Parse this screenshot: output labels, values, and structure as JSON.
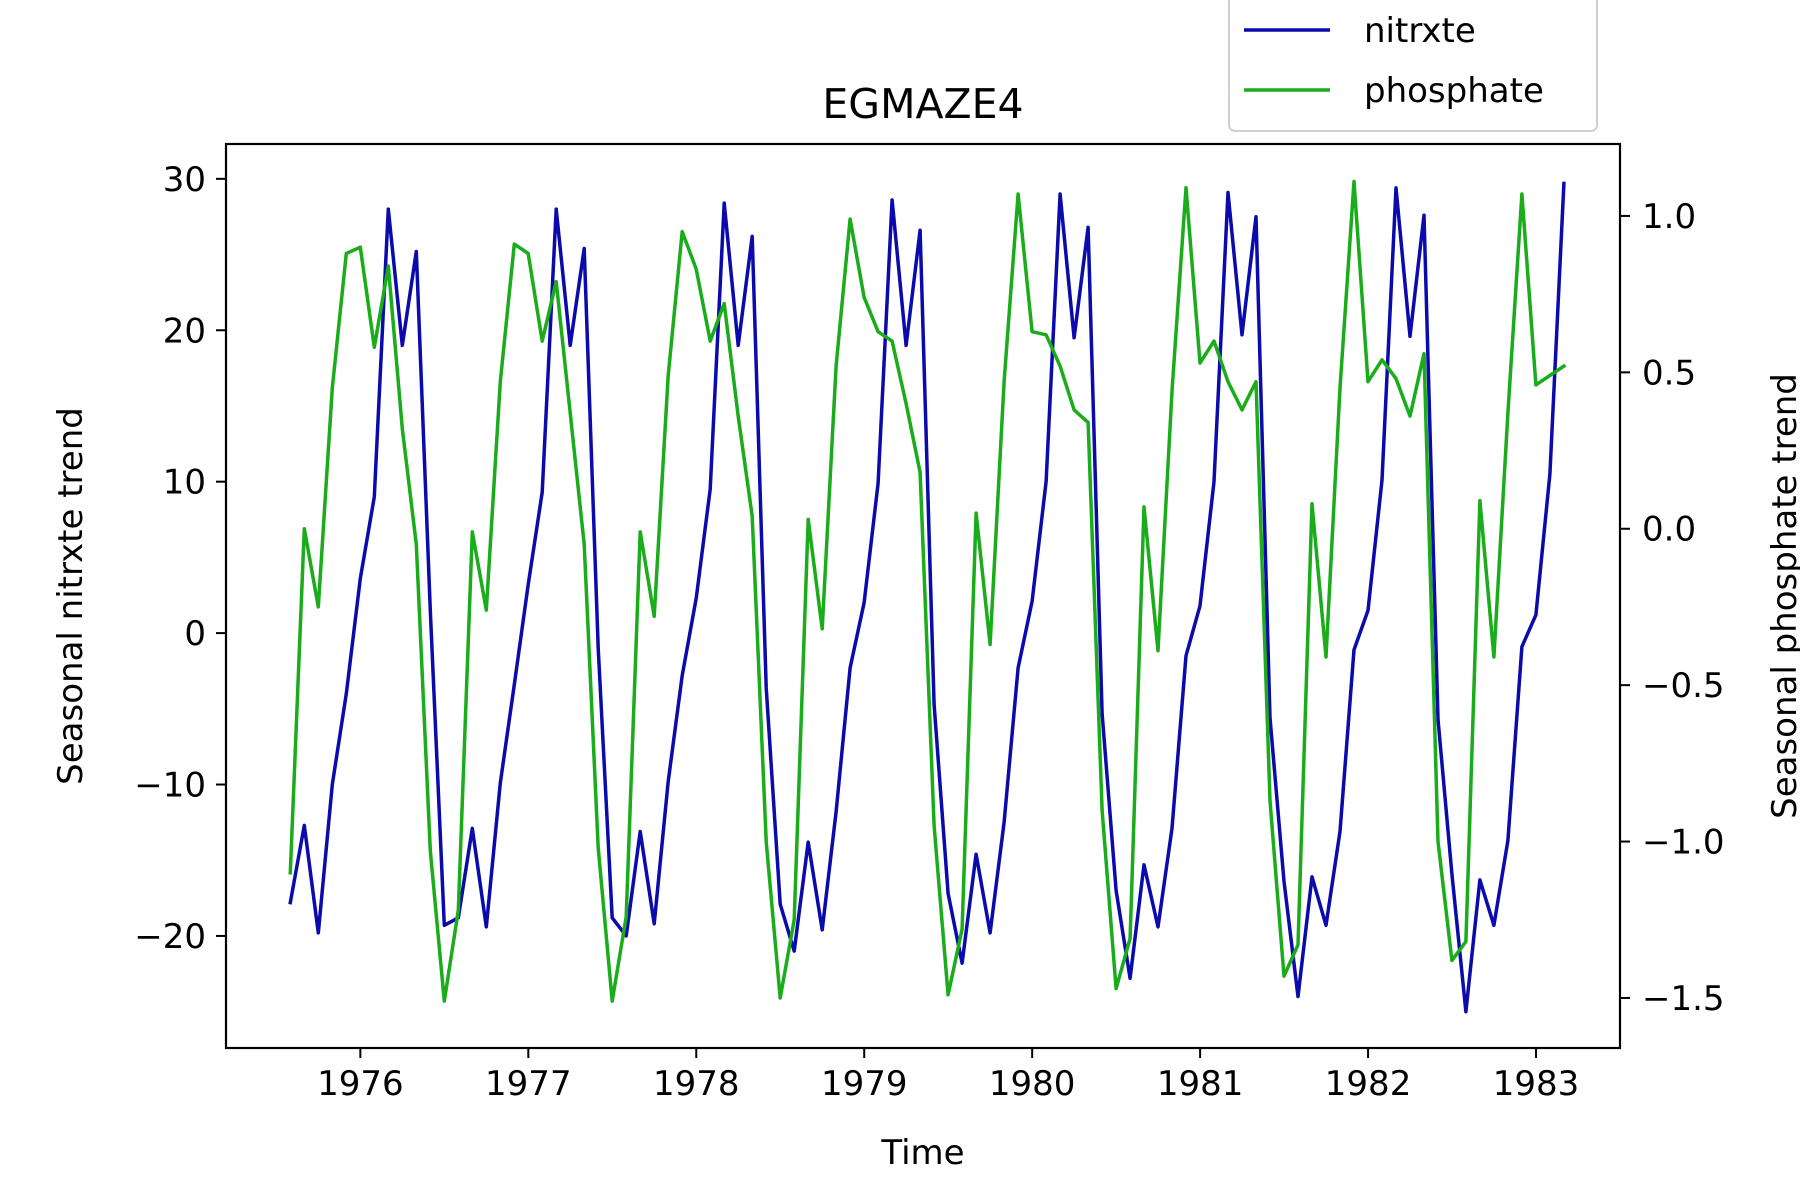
{
  "chart_data": {
    "type": "line",
    "title": "EGMAZE4",
    "xlabel": "Time",
    "ylabel_left": "Seasonal nitrxte trend",
    "ylabel_right": "Seasonal phosphate trend",
    "xlim": [
      1975.2,
      1983.5
    ],
    "ylim_left": [
      -27.4,
      32.3
    ],
    "ylim_right": [
      -1.66,
      1.23
    ],
    "x_ticks": [
      1976,
      1977,
      1978,
      1979,
      1980,
      1981,
      1982,
      1983
    ],
    "x_tick_labels": [
      "1976",
      "1977",
      "1978",
      "1979",
      "1980",
      "1981",
      "1982",
      "1983"
    ],
    "y_left_ticks": [
      -20,
      -10,
      0,
      10,
      20,
      30
    ],
    "y_left_tick_labels": [
      "−20",
      "−10",
      "0",
      "10",
      "20",
      "30"
    ],
    "y_right_ticks": [
      -1.5,
      -1.0,
      -0.5,
      0.0,
      0.5,
      1.0
    ],
    "y_right_tick_labels": [
      "−1.5",
      "−1.0",
      "−0.5",
      "0.0",
      "0.5",
      "1.0"
    ],
    "grid": false,
    "legend_position": "top-right, above plot",
    "x_start_year": 1975.583,
    "x_step_years": 0.08333,
    "series": [
      {
        "name": "nitrxte",
        "axis": "left",
        "color": "#0a0aad",
        "values": [
          -17.8,
          -12.7,
          -19.8,
          -10.0,
          -4.0,
          3.6,
          9.0,
          28.0,
          19.0,
          25.2,
          1.5,
          -19.3,
          -18.8,
          -12.9,
          -19.4,
          -9.9,
          -3.4,
          3.2,
          9.3,
          28.0,
          19.0,
          25.4,
          -1.0,
          -18.8,
          -20.0,
          -13.1,
          -19.2,
          -9.8,
          -2.8,
          2.3,
          9.5,
          28.4,
          19.0,
          26.2,
          -3.6,
          -17.9,
          -21.0,
          -13.8,
          -19.6,
          -11.8,
          -2.3,
          2.0,
          9.9,
          28.6,
          19.0,
          26.6,
          -4.7,
          -17.2,
          -21.8,
          -14.6,
          -19.8,
          -12.5,
          -2.3,
          2.1,
          10.0,
          29.0,
          19.5,
          26.8,
          -5.3,
          -17.0,
          -22.8,
          -15.3,
          -19.4,
          -12.9,
          -1.5,
          1.8,
          10.0,
          29.1,
          19.7,
          27.5,
          -5.6,
          -16.4,
          -24.0,
          -16.1,
          -19.3,
          -13.1,
          -1.1,
          1.5,
          10.1,
          29.4,
          19.6,
          27.6,
          -5.7,
          -15.9,
          -25.0,
          -16.3,
          -19.3,
          -13.7,
          -0.9,
          1.2,
          10.5,
          29.7
        ]
      },
      {
        "name": "phosphate",
        "axis": "left-scaled-right",
        "color": "#1aac1a",
        "values": [
          -1.1,
          0.0,
          -0.25,
          0.45,
          0.88,
          0.9,
          0.58,
          0.84,
          0.32,
          -0.05,
          -1.03,
          -1.51,
          -1.22,
          -0.01,
          -0.26,
          0.47,
          0.91,
          0.88,
          0.6,
          0.79,
          0.37,
          -0.05,
          -1.02,
          -1.51,
          -1.24,
          -0.01,
          -0.28,
          0.49,
          0.95,
          0.83,
          0.6,
          0.72,
          0.36,
          0.04,
          -1.0,
          -1.5,
          -1.25,
          0.03,
          -0.32,
          0.52,
          0.99,
          0.74,
          0.63,
          0.6,
          0.4,
          0.18,
          -0.95,
          -1.49,
          -1.28,
          0.05,
          -0.37,
          0.47,
          1.07,
          0.63,
          0.62,
          0.52,
          0.38,
          0.34,
          -0.9,
          -1.47,
          -1.31,
          0.07,
          -0.39,
          0.44,
          1.09,
          0.53,
          0.6,
          0.47,
          0.38,
          0.47,
          -0.87,
          -1.43,
          -1.33,
          0.08,
          -0.41,
          0.45,
          1.11,
          0.47,
          0.54,
          0.48,
          0.36,
          0.56,
          -1.0,
          -1.38,
          -1.32,
          0.09,
          -0.41,
          0.37,
          1.07,
          0.46,
          0.49,
          0.52
        ]
      }
    ]
  }
}
